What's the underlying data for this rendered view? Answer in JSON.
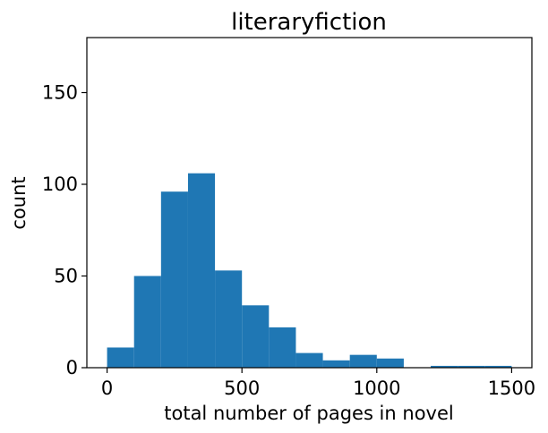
{
  "chart_data": {
    "type": "bar",
    "title": "literaryfiction",
    "xlabel": "total number of pages in novel",
    "ylabel": "count",
    "xlim": [
      -75,
      1575
    ],
    "ylim": [
      0,
      180
    ],
    "x_ticks": [
      0,
      500,
      1000,
      1500
    ],
    "y_ticks": [
      0,
      50,
      100,
      150
    ],
    "grid": false,
    "color": "#1f77b4",
    "bins": [
      {
        "x0": 0,
        "x1": 100,
        "value": 11
      },
      {
        "x0": 100,
        "x1": 200,
        "value": 50
      },
      {
        "x0": 200,
        "x1": 300,
        "value": 96
      },
      {
        "x0": 300,
        "x1": 400,
        "value": 106
      },
      {
        "x0": 400,
        "x1": 500,
        "value": 53
      },
      {
        "x0": 500,
        "x1": 600,
        "value": 34
      },
      {
        "x0": 600,
        "x1": 700,
        "value": 22
      },
      {
        "x0": 700,
        "x1": 800,
        "value": 8
      },
      {
        "x0": 800,
        "x1": 900,
        "value": 4
      },
      {
        "x0": 900,
        "x1": 1000,
        "value": 7
      },
      {
        "x0": 1000,
        "x1": 1100,
        "value": 5
      },
      {
        "x0": 1100,
        "x1": 1200,
        "value": 0
      },
      {
        "x0": 1200,
        "x1": 1300,
        "value": 1
      },
      {
        "x0": 1300,
        "x1": 1400,
        "value": 1
      },
      {
        "x0": 1400,
        "x1": 1500,
        "value": 1
      }
    ]
  }
}
